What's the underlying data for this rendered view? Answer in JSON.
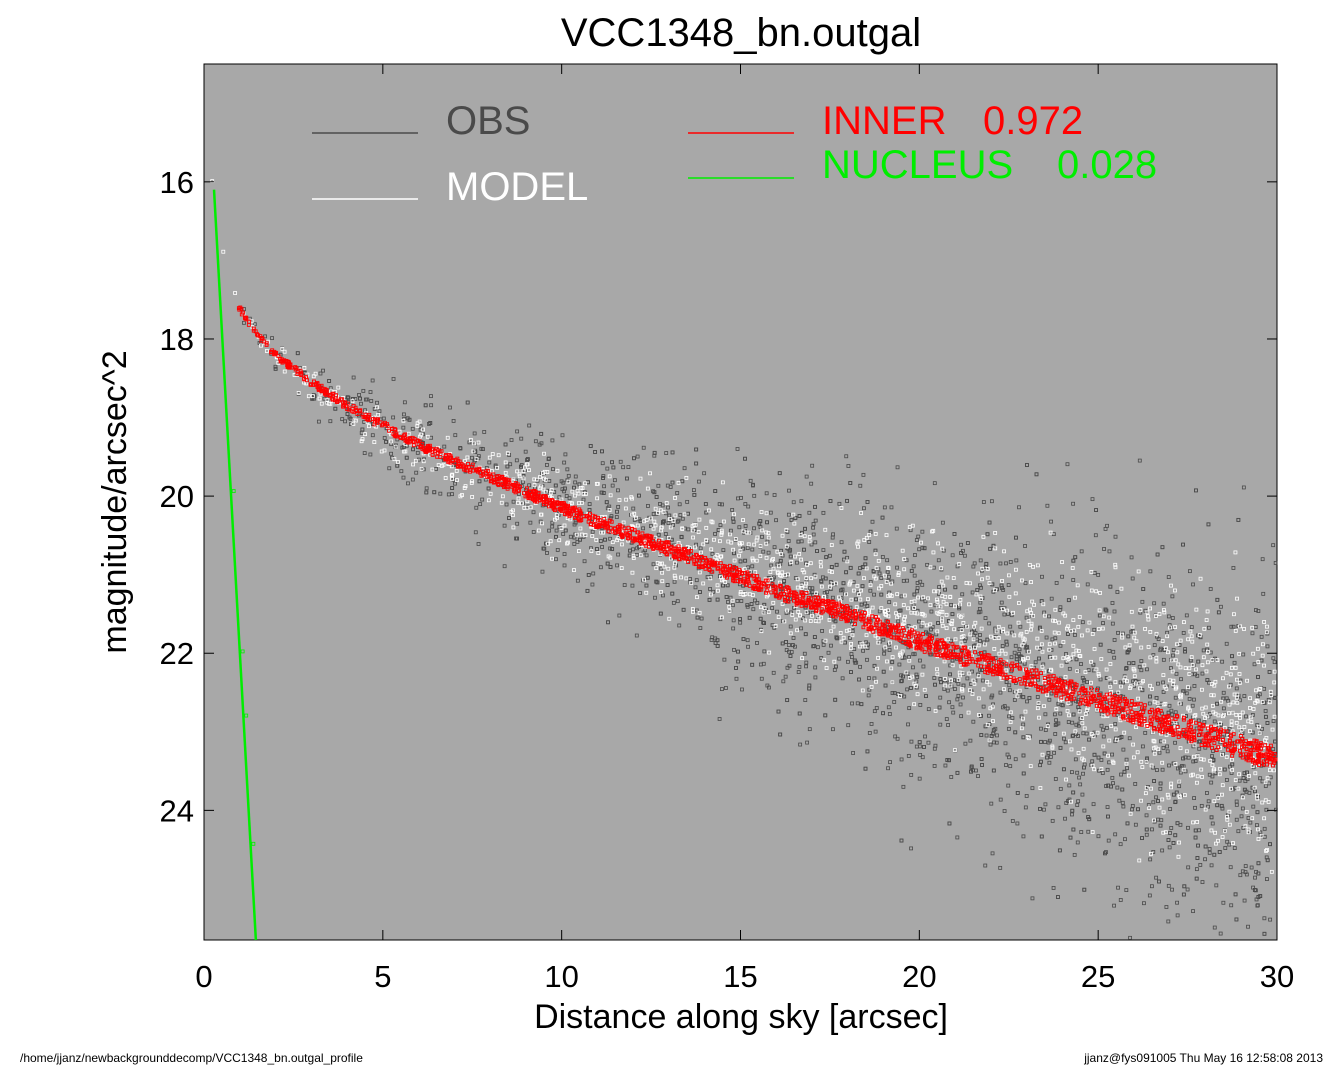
{
  "chart_data": {
    "type": "scatter",
    "title": "VCC1348_bn.outgal",
    "xlabel": "Distance along sky [arcsec]",
    "ylabel": "magnitude/arcsec^2",
    "xlim": [
      0,
      30
    ],
    "ylim": [
      25.65,
      14.5
    ],
    "y_inverted": true,
    "xticks": [
      0,
      5,
      10,
      15,
      20,
      25,
      30
    ],
    "yticks": [
      16,
      18,
      20,
      22,
      24
    ],
    "background_color": "#a8a8a8",
    "grid": false,
    "legend_position": "top",
    "legend": [
      {
        "name": "OBS",
        "value": "",
        "color": "#4a4a4a"
      },
      {
        "name": "MODEL",
        "value": "",
        "color": "#ffffff"
      },
      {
        "name": "INNER",
        "value": "0.972",
        "color": "#ff0000"
      },
      {
        "name": "NUCLEUS",
        "value": "0.028",
        "color": "#00ee00"
      }
    ],
    "series": [
      {
        "name": "OBS",
        "kind": "points",
        "color": "#4a4a4a",
        "x": [
          0.2,
          0.3,
          0.5,
          0.8,
          1.0,
          1.5,
          2.0,
          3.0,
          4.0,
          5.0,
          6.0,
          7.0,
          8.0,
          9.0,
          10.0,
          12.0,
          14.0,
          16.0,
          18.0,
          20.0,
          22.0,
          24.0,
          26.0,
          28.0,
          30.0
        ],
        "y": [
          15.6,
          16.0,
          16.8,
          17.3,
          17.55,
          17.95,
          18.2,
          18.55,
          18.85,
          19.1,
          19.35,
          19.55,
          19.75,
          19.9,
          20.1,
          20.4,
          20.7,
          20.95,
          21.25,
          21.55,
          21.85,
          22.15,
          22.5,
          22.85,
          23.2
        ]
      },
      {
        "name": "MODEL",
        "kind": "points",
        "color": "#ffffff",
        "x": [
          0.2,
          0.5,
          1.0,
          2.0,
          4.0,
          6.0,
          8.0,
          10.0,
          12.0,
          14.0,
          16.0,
          18.0,
          20.0,
          22.0,
          24.0,
          26.0,
          28.0,
          30.0
        ],
        "y": [
          15.9,
          16.8,
          17.65,
          18.25,
          18.9,
          19.4,
          19.8,
          20.15,
          20.45,
          20.75,
          21.05,
          21.35,
          21.65,
          21.95,
          22.3,
          22.6,
          22.9,
          23.25
        ]
      },
      {
        "name": "INNER",
        "kind": "band",
        "color": "#ff0000",
        "x": [
          0.9,
          1.5,
          2.0,
          3.0,
          4.0,
          5.0,
          6.0,
          7.0,
          8.0,
          9.0,
          10.0,
          12.0,
          14.0,
          16.0,
          18.0,
          20.0,
          22.0,
          24.0,
          26.0,
          28.0,
          30.0
        ],
        "y": [
          17.55,
          17.95,
          18.2,
          18.55,
          18.85,
          19.1,
          19.35,
          19.55,
          19.75,
          19.95,
          20.15,
          20.5,
          20.85,
          21.2,
          21.5,
          21.85,
          22.15,
          22.45,
          22.75,
          23.05,
          23.35
        ]
      },
      {
        "name": "NUCLEUS",
        "kind": "line",
        "color": "#00ee00",
        "x": [
          0.28,
          1.45
        ],
        "y": [
          16.1,
          25.65
        ]
      }
    ]
  },
  "footer": {
    "left": "/home/jjanz/newbackgrounddecomp/VCC1348_bn.outgal_profile",
    "right": "jjanz@fys091005  Thu May 16 12:58:08 2013"
  }
}
